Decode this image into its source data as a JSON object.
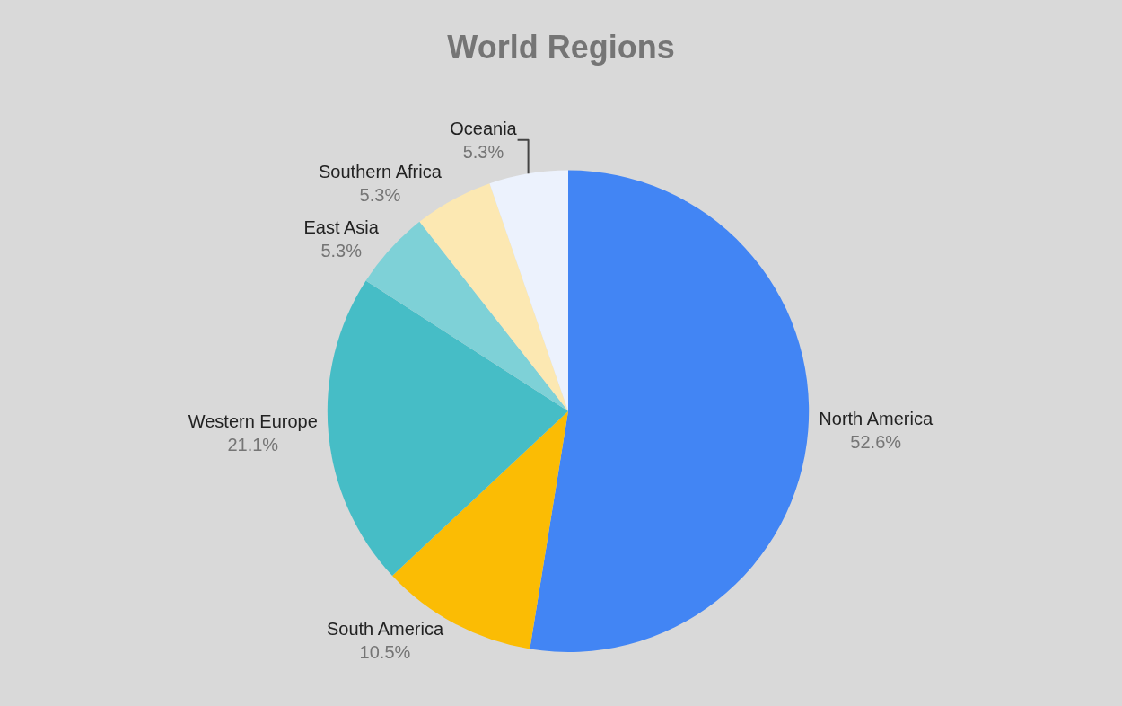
{
  "chart_data": {
    "type": "pie",
    "title": "World Regions",
    "categories": [
      "North America",
      "South America",
      "Western Europe",
      "East Asia",
      "Southern Africa",
      "Oceania"
    ],
    "values": [
      52.6,
      10.5,
      21.1,
      5.3,
      5.3,
      5.3
    ],
    "value_labels": [
      "52.6%",
      "10.5%",
      "21.1%",
      "5.3%",
      "5.3%",
      "5.3%"
    ],
    "colors": [
      "#4285f4",
      "#fbbc04",
      "#46bdc6",
      "#7ed1d7",
      "#fce8b2",
      "#ecf2fd"
    ],
    "legend": false
  }
}
